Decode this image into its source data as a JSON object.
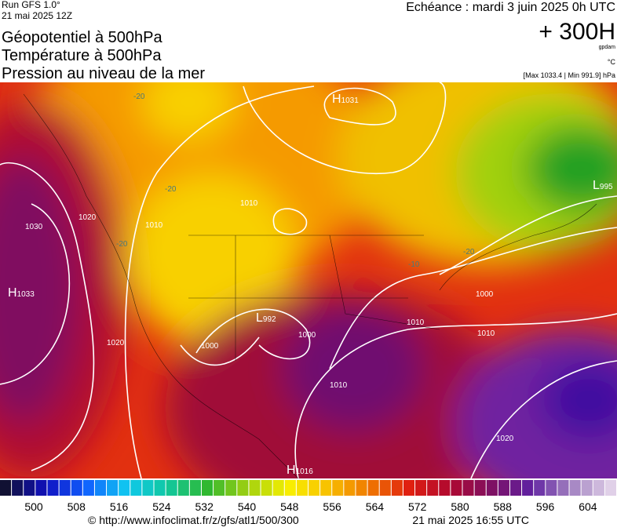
{
  "header": {
    "run": "Run GFS 1.0°",
    "run_date": "21 mai 2025 12Z",
    "valid": "Echéance : mardi 3 juin 2025 0h UTC",
    "lead": "+ 300H",
    "unit_geo": "gpdam",
    "unit_temp": "°C",
    "pressure_range": "[Max 1033.4 | Min 991.9] hPa",
    "titles": [
      "Géopotentiel à 500hPa",
      "Température à 500hPa",
      "Pression au niveau de la mer"
    ]
  },
  "centers": [
    {
      "letter": "H",
      "value": "1031"
    },
    {
      "letter": "L",
      "value": "995"
    },
    {
      "letter": "H",
      "value": "1033"
    },
    {
      "letter": "L",
      "value": "992"
    },
    {
      "letter": "H",
      "value": "1016"
    }
  ],
  "isobar_labels": [
    "1030",
    "1020",
    "1010",
    "1010",
    "1020",
    "1000",
    "1000",
    "1010",
    "1010",
    "1010",
    "1000",
    "1020"
  ],
  "temperature_labels": [
    "-20",
    "-20",
    "-20",
    "-20",
    "-10"
  ],
  "colorbar": {
    "labels": [
      "500",
      "508",
      "516",
      "524",
      "532",
      "540",
      "548",
      "556",
      "564",
      "572",
      "580",
      "588",
      "596",
      "604"
    ],
    "palette": [
      "#111133",
      "#1010c0",
      "#1060ff",
      "#10c8f0",
      "#10c8a0",
      "#30b830",
      "#a0d010",
      "#f8f000",
      "#f8c000",
      "#f07800",
      "#e02010",
      "#b00830",
      "#801060",
      "#6020a0",
      "#a080c0",
      "#e0d0e8"
    ]
  },
  "footer": {
    "url": "© http://www.infoclimat.fr/z/gfs/atl1/500/300",
    "generated": "21 mai 2025 16:55 UTC"
  }
}
